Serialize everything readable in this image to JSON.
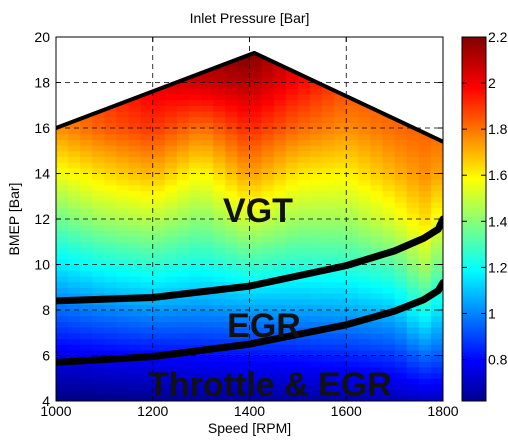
{
  "chart_data": {
    "type": "heatmap",
    "title": "Inlet Pressure [Bar]",
    "xlabel": "Speed [RPM]",
    "ylabel": "BMEP [Bar]",
    "xlim": [
      1000,
      1800
    ],
    "ylim": [
      4,
      20
    ],
    "xticks": [
      "1000",
      "1200",
      "1400",
      "1600",
      "1800"
    ],
    "yticks": [
      "4",
      "6",
      "8",
      "10",
      "12",
      "14",
      "16",
      "18",
      "20"
    ],
    "grid": true,
    "colorbar": {
      "range": [
        0.62,
        2.2
      ],
      "ticks": [
        "0.8",
        "1",
        "1.2",
        "1.4",
        "1.6",
        "1.8",
        "2",
        "2.2"
      ],
      "colormap": "jet"
    },
    "field": {
      "speeds": [
        1000,
        1100,
        1200,
        1300,
        1400,
        1500,
        1600,
        1700,
        1760,
        1800
      ],
      "bmep_rows": [
        4,
        6,
        8,
        10,
        12,
        14,
        16,
        18,
        19.2
      ],
      "values": [
        [
          0.62,
          0.63,
          0.64,
          0.65,
          0.66,
          0.67,
          0.68,
          0.7,
          0.72,
          0.72
        ],
        [
          0.78,
          0.8,
          0.82,
          0.83,
          0.84,
          0.85,
          0.87,
          0.9,
          0.98,
          0.95
        ],
        [
          0.98,
          1.02,
          1.05,
          1.04,
          1.06,
          1.07,
          1.08,
          1.12,
          1.25,
          1.15
        ],
        [
          1.18,
          1.24,
          1.28,
          1.24,
          1.3,
          1.27,
          1.28,
          1.34,
          1.48,
          1.36
        ],
        [
          1.38,
          1.46,
          1.5,
          1.42,
          1.54,
          1.46,
          1.46,
          1.56,
          1.66,
          1.56
        ],
        [
          1.58,
          1.66,
          1.72,
          1.6,
          1.76,
          1.64,
          1.62,
          1.72,
          1.78,
          1.74
        ],
        [
          1.78,
          1.86,
          1.92,
          1.82,
          1.94,
          1.84,
          1.78,
          1.84,
          1.86,
          1.85
        ],
        [
          1.85,
          1.95,
          2.05,
          2.08,
          2.12,
          2.0,
          1.9,
          1.88,
          1.88,
          1.88
        ],
        [
          1.9,
          2.0,
          2.1,
          2.15,
          2.2,
          2.05,
          1.95,
          1.92,
          1.9,
          1.9
        ]
      ]
    },
    "boundaries": [
      {
        "name": "full-load",
        "x": [
          1000,
          1410,
          1800
        ],
        "y": [
          16.0,
          19.3,
          15.4
        ]
      },
      {
        "name": "vgt-egr",
        "x": [
          1000,
          1200,
          1400,
          1600,
          1700,
          1760,
          1790,
          1800
        ],
        "y": [
          8.4,
          8.55,
          9.05,
          9.95,
          10.6,
          11.15,
          11.55,
          12.0
        ]
      },
      {
        "name": "egr-throttle",
        "x": [
          1000,
          1200,
          1400,
          1600,
          1700,
          1760,
          1790,
          1800
        ],
        "y": [
          5.7,
          5.95,
          6.5,
          7.35,
          7.95,
          8.45,
          8.85,
          9.2
        ]
      }
    ],
    "regions": [
      {
        "label": "VGT",
        "x": 1440,
        "y": 12.3
      },
      {
        "label": "EGR",
        "x": 1470,
        "y": 7.5
      },
      {
        "label": "Throttle & EGR",
        "x": 1550,
        "y": 4.6
      }
    ]
  }
}
